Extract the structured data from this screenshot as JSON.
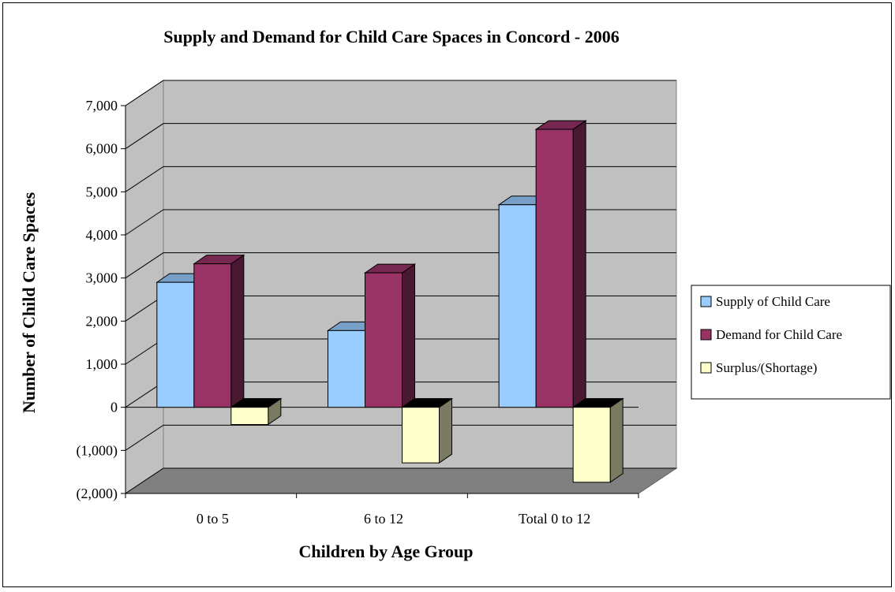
{
  "chart_data": {
    "type": "bar",
    "title": "Supply and Demand for Child Care Spaces in Concord - 2006",
    "xlabel": "Children by Age Group",
    "ylabel": "Number of Child Care Spaces",
    "categories": [
      "0 to 5",
      "6 to 12",
      "Total  0 to 12"
    ],
    "series": [
      {
        "name": "Supply of Child Care",
        "values": [
          2900,
          1780,
          4700
        ],
        "color": "#99CCFF"
      },
      {
        "name": "Demand for Child Care",
        "values": [
          3330,
          3120,
          6450
        ],
        "color": "#993366"
      },
      {
        "name": "Surplus/(Shortage)",
        "values": [
          -400,
          -1290,
          -1740
        ],
        "color": "#FFFFCC"
      }
    ],
    "ylim": [
      -2000,
      7000
    ],
    "yticks": [
      7000,
      6000,
      5000,
      4000,
      3000,
      2000,
      1000,
      0,
      -1000,
      -2000
    ],
    "ytick_labels": [
      "7,000",
      "6,000",
      "5,000",
      "4,000",
      "3,000",
      "2,000",
      "1,000",
      "0",
      "(1,000)",
      "(2,000)"
    ],
    "grid": true,
    "legend_position": "right",
    "style": "3d-clustered-column"
  }
}
